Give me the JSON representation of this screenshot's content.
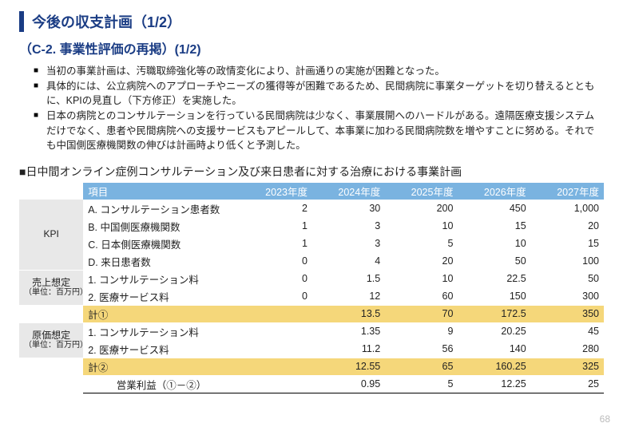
{
  "title": "今後の収支計画（1/2）",
  "subtitle": "（C-2. 事業性評価の再掲）(1/2)",
  "bullets": [
    "当初の事業計画は、汚職取締強化等の政情変化により、計画通りの実施が困難となった。",
    "具体的には、公立病院へのアプローチやニーズの獲得等が困難であるため、民間病院に事業ターゲットを切り替えるとともに、KPIの見直し（下方修正）を実施した。",
    "日本の病院とのコンサルテーションを行っている民間病院は少なく、事業展開へのハードルがある。遠隔医療支援システムだけでなく、患者や民間病院への支援サービスもアピールして、本事業に加わる民間病院数を増やすことに努める。それでも中国側医療機関数の伸びは計画時より低くと予測した。"
  ],
  "section_head": "■日中間オンライン症例コンサルテーション及び来日患者に対する治療における事業計画",
  "table": {
    "headers": {
      "item": "項目",
      "y1": "2023年度",
      "y2": "2024年度",
      "y3": "2025年度",
      "y4": "2026年度",
      "y5": "2027年度"
    },
    "groups": {
      "kpi": "KPI",
      "sales": "売上想定",
      "cost": "原価想定",
      "unit": "（単位：百万円）"
    },
    "rows": {
      "kpiA": {
        "label": "A. コンサルテーション患者数",
        "v": [
          "2",
          "30",
          "200",
          "450",
          "1,000"
        ]
      },
      "kpiB": {
        "label": "B. 中国側医療機関数",
        "v": [
          "1",
          "3",
          "10",
          "15",
          "20"
        ]
      },
      "kpiC": {
        "label": "C. 日本側医療機関数",
        "v": [
          "1",
          "3",
          "5",
          "10",
          "15"
        ]
      },
      "kpiD": {
        "label": "D. 来日患者数",
        "v": [
          "0",
          "4",
          "20",
          "50",
          "100"
        ]
      },
      "s1": {
        "label": "1. コンサルテーション料",
        "v": [
          "0",
          "1.5",
          "10",
          "22.5",
          "50"
        ]
      },
      "s2": {
        "label": "2. 医療サービス料",
        "v": [
          "0",
          "12",
          "60",
          "150",
          "300"
        ]
      },
      "sum1": {
        "label": "計①",
        "v": [
          "",
          "13.5",
          "70",
          "172.5",
          "350"
        ]
      },
      "c1": {
        "label": "1. コンサルテーション料",
        "v": [
          "",
          "1.35",
          "9",
          "20.25",
          "45"
        ]
      },
      "c2": {
        "label": "2. 医療サービス料",
        "v": [
          "",
          "11.2",
          "56",
          "140",
          "280"
        ]
      },
      "sum2": {
        "label": "計②",
        "v": [
          "",
          "12.55",
          "65",
          "160.25",
          "325"
        ]
      },
      "op": {
        "label": "営業利益（①－②）",
        "v": [
          "",
          "0.95",
          "5",
          "12.25",
          "25"
        ]
      }
    }
  },
  "page_number": "68"
}
